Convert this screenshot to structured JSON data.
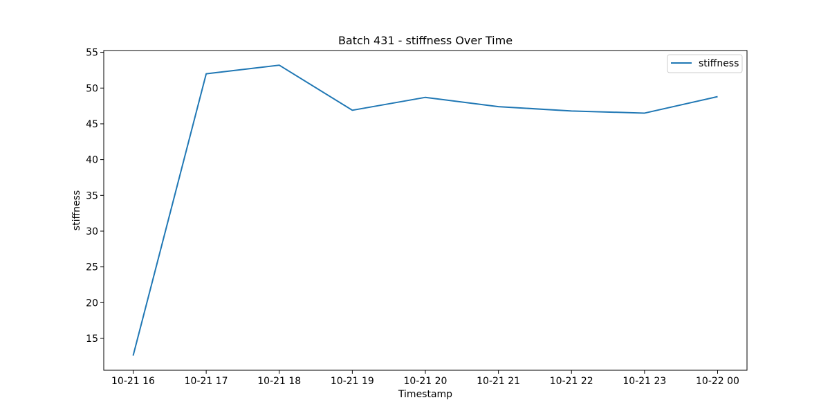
{
  "chart_data": {
    "type": "line",
    "title": "Batch 431 - stiffness Over Time",
    "xlabel": "Timestamp",
    "ylabel": "stiffness",
    "x": [
      "10-21 16",
      "10-21 17",
      "10-21 18",
      "10-21 19",
      "10-21 20",
      "10-21 21",
      "10-21 22",
      "10-21 23",
      "10-22 00"
    ],
    "series": [
      {
        "name": "stiffness",
        "color": "#1f77b4",
        "values": [
          12.6,
          52.0,
          53.2,
          46.9,
          48.7,
          47.4,
          46.8,
          46.5,
          48.8
        ]
      }
    ],
    "x_ticks": [
      "10-21 16",
      "10-21 17",
      "10-21 18",
      "10-21 19",
      "10-21 20",
      "10-21 21",
      "10-21 22",
      "10-21 23",
      "10-22 00"
    ],
    "y_ticks": [
      15,
      20,
      25,
      30,
      35,
      40,
      45,
      50,
      55
    ],
    "ylim": [
      10.55,
      55.25
    ],
    "grid": false,
    "legend_position": "upper right"
  }
}
